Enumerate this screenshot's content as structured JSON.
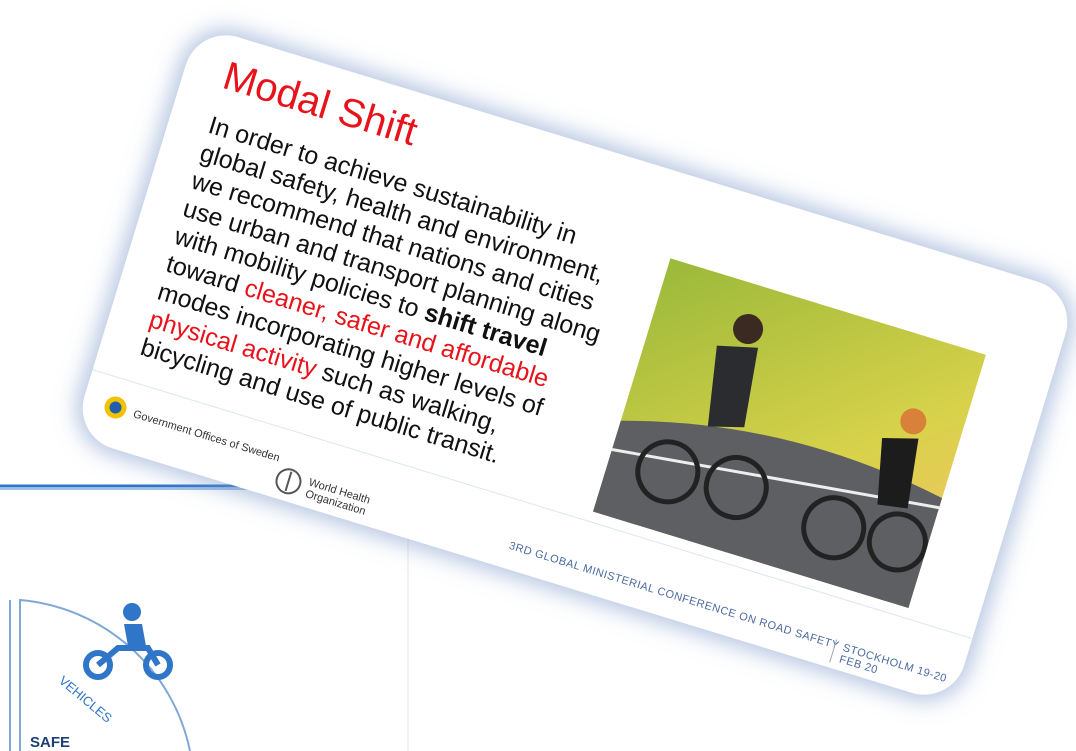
{
  "slide": {
    "title": "Modal Shift",
    "body": [
      {
        "text": "In order to achieve sustainability in global safety, health and environment, we recommend that nations and cities use urban and transport planning along with mobility policies to ",
        "style": "plain"
      },
      {
        "text": "shift travel",
        "style": "bold"
      },
      {
        "text": " toward ",
        "style": "plain"
      },
      {
        "text": "cleaner, safer and affordable",
        "style": "red"
      },
      {
        "text": " modes incorporating higher levels of ",
        "style": "plain"
      },
      {
        "text": "physical activity",
        "style": "red"
      },
      {
        "text": " such as walking, bicycling and use of public transit.",
        "style": "plain"
      }
    ],
    "footer": {
      "logo_left": "Government Offices of Sweden",
      "logo_right": "World Health Organization",
      "conference": "3RD GLOBAL MINISTERIAL CONFERENCE ON ROAD SAFETY",
      "place": "STOCKHOLM 19-20 FEB 20"
    }
  },
  "background_slide": {
    "sector_label": "VEHICLES",
    "corner_label": "SAFE"
  }
}
